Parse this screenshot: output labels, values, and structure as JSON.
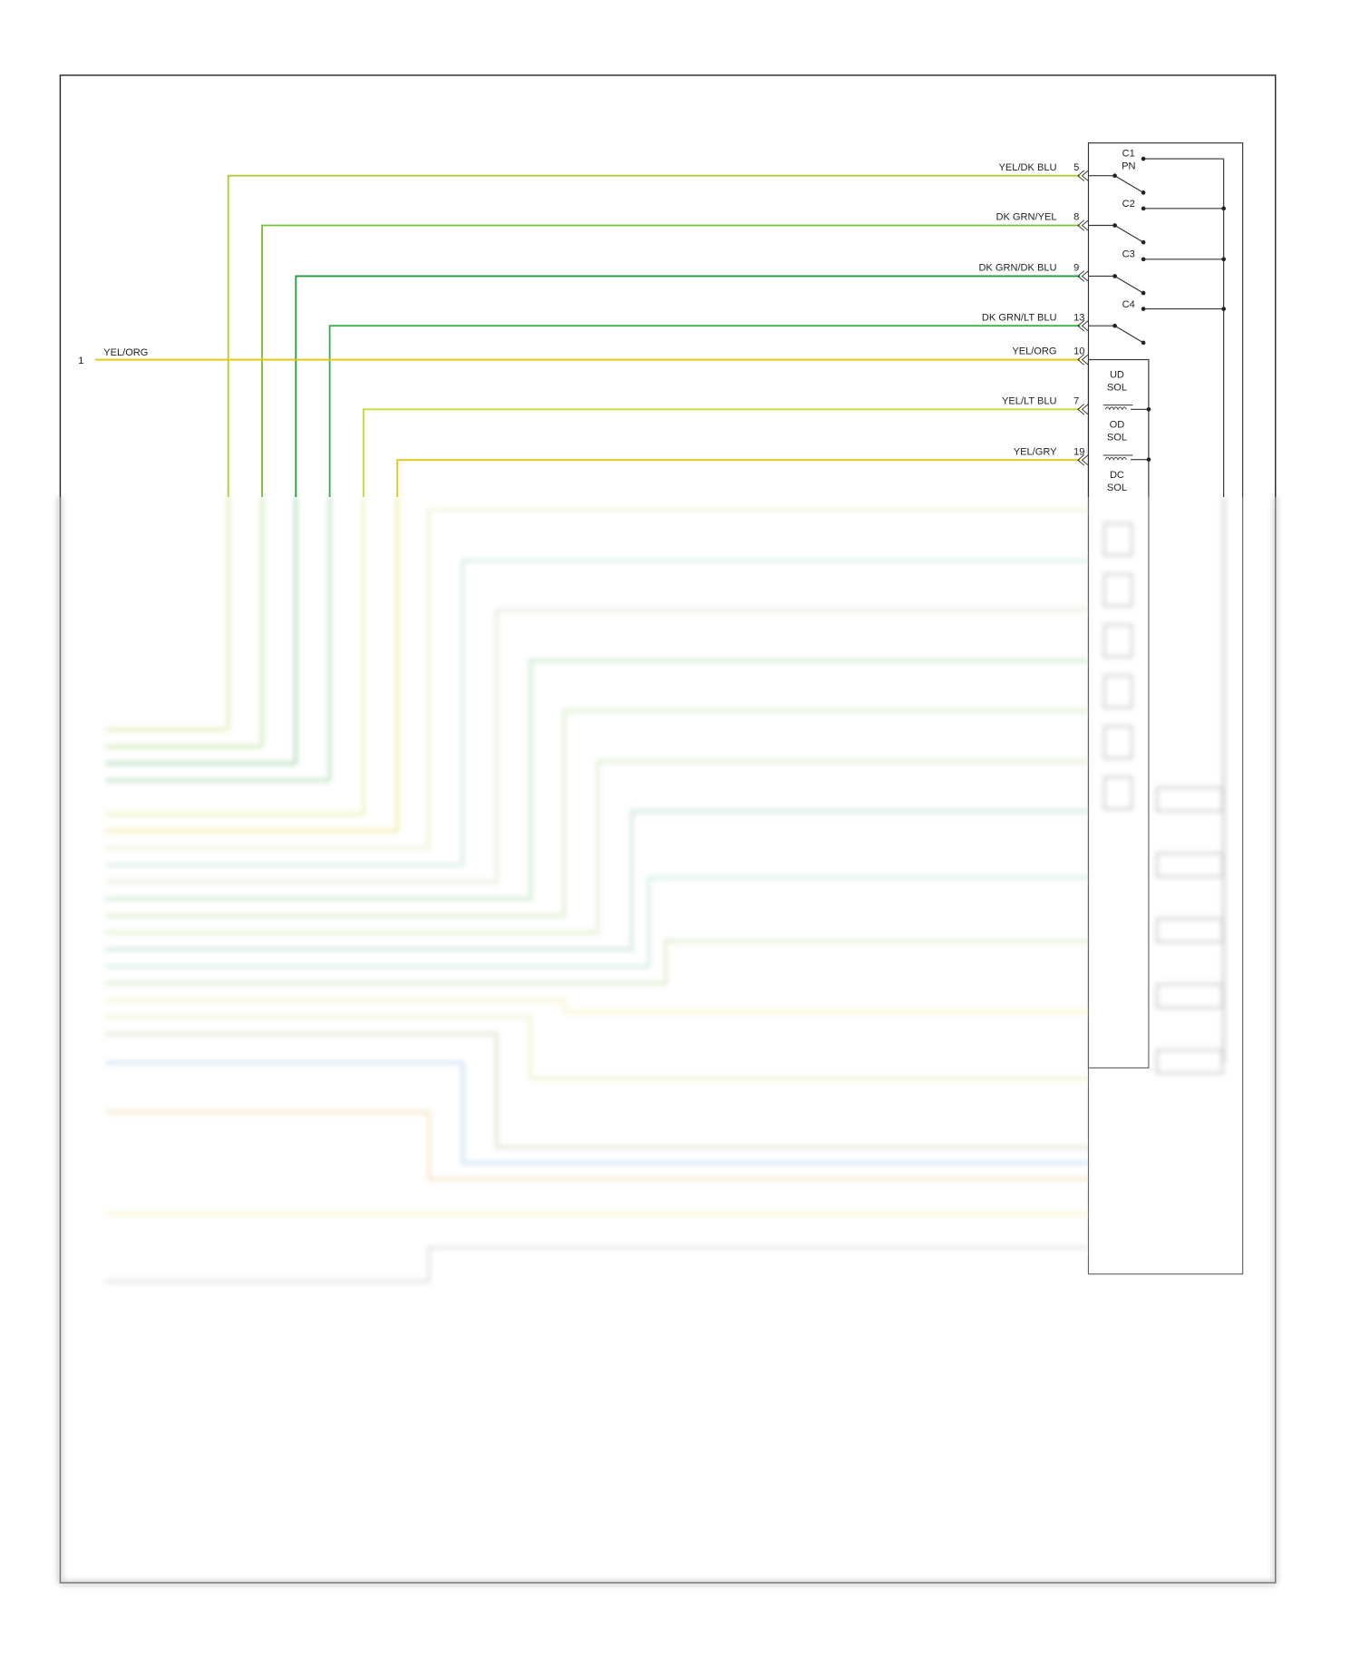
{
  "left_connector": {
    "pin": 1,
    "wire": "YEL/ORG"
  },
  "wires": [
    {
      "label": "YEL/DK BLU",
      "pin": 5
    },
    {
      "label": "DK GRN/YEL",
      "pin": 8
    },
    {
      "label": "DK GRN/DK BLU",
      "pin": 9
    },
    {
      "label": "DK GRN/LT BLU",
      "pin": 13
    },
    {
      "label": "YEL/ORG",
      "pin": 10
    },
    {
      "label": "YEL/LT BLU",
      "pin": 7
    },
    {
      "label": "YEL/GRY",
      "pin": 19
    }
  ],
  "switches": [
    {
      "label": "C1",
      "sub": "PN"
    },
    {
      "label": "C2"
    },
    {
      "label": "C3"
    },
    {
      "label": "C4"
    }
  ],
  "solenoids": [
    {
      "label": "UD",
      "sub": "SOL"
    },
    {
      "label": "OD",
      "sub": "SOL"
    },
    {
      "label": "DC",
      "sub": "SOL"
    }
  ]
}
